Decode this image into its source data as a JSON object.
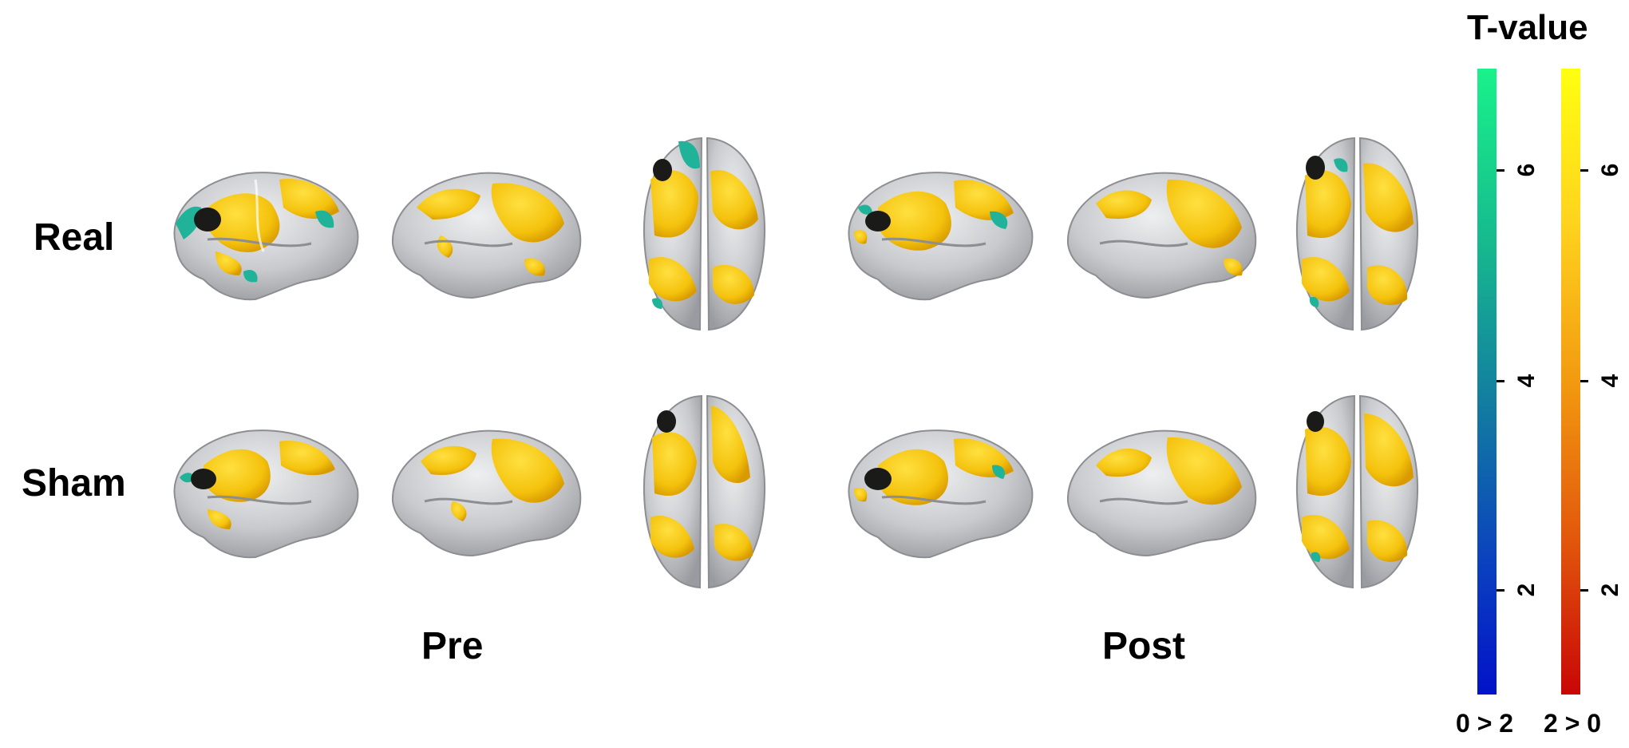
{
  "rows": [
    {
      "label": "Real"
    },
    {
      "label": "Sham"
    }
  ],
  "columns": [
    {
      "label": "Pre"
    },
    {
      "label": "Post"
    }
  ],
  "colorbar": {
    "title": "T-value",
    "cool": {
      "caption": "0 > 2",
      "ticks": [
        "6",
        "4",
        "2"
      ],
      "top_color": "#19f28a",
      "bottom_color": "#0212c8"
    },
    "hot": {
      "caption": "2 > 0",
      "ticks": [
        "6",
        "4",
        "2"
      ],
      "top_color": "#ffff10",
      "bottom_color": "#c80606"
    }
  },
  "colors": {
    "cortex": "#c9cacd",
    "activation_yellow": "#f4c20d",
    "activation_teal": "#21b39a",
    "dark_spot": "#1a1a18"
  }
}
